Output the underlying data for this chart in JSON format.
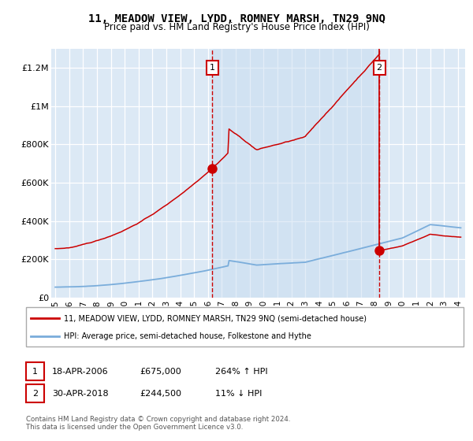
{
  "title": "11, MEADOW VIEW, LYDD, ROMNEY MARSH, TN29 9NQ",
  "subtitle": "Price paid vs. HM Land Registry's House Price Index (HPI)",
  "legend_line1": "11, MEADOW VIEW, LYDD, ROMNEY MARSH, TN29 9NQ (semi-detached house)",
  "legend_line2": "HPI: Average price, semi-detached house, Folkestone and Hythe",
  "annotation1_date": "18-APR-2006",
  "annotation1_price": "£675,000",
  "annotation1_hpi": "264% ↑ HPI",
  "annotation2_date": "30-APR-2018",
  "annotation2_price": "£244,500",
  "annotation2_hpi": "11% ↓ HPI",
  "footer": "Contains HM Land Registry data © Crown copyright and database right 2024.\nThis data is licensed under the Open Government Licence v3.0.",
  "xlim": [
    1994.7,
    2024.5
  ],
  "ylim": [
    0,
    1300000
  ],
  "yticks": [
    0,
    200000,
    400000,
    600000,
    800000,
    1000000,
    1200000
  ],
  "ytick_labels": [
    "£0",
    "£200K",
    "£400K",
    "£600K",
    "£800K",
    "£1M",
    "£1.2M"
  ],
  "xticks": [
    1995,
    1996,
    1997,
    1998,
    1999,
    2000,
    2001,
    2002,
    2003,
    2004,
    2005,
    2006,
    2007,
    2008,
    2009,
    2010,
    2011,
    2012,
    2013,
    2014,
    2015,
    2016,
    2017,
    2018,
    2019,
    2020,
    2021,
    2022,
    2023,
    2024
  ],
  "marker1_x": 2006.3,
  "marker1_y": 675000,
  "marker2_x": 2018.33,
  "marker2_y": 244500,
  "bg_color": "#dce9f5",
  "bg_shaded": "#c8ddf0",
  "red_color": "#cc0000",
  "blue_color": "#7aaddb"
}
